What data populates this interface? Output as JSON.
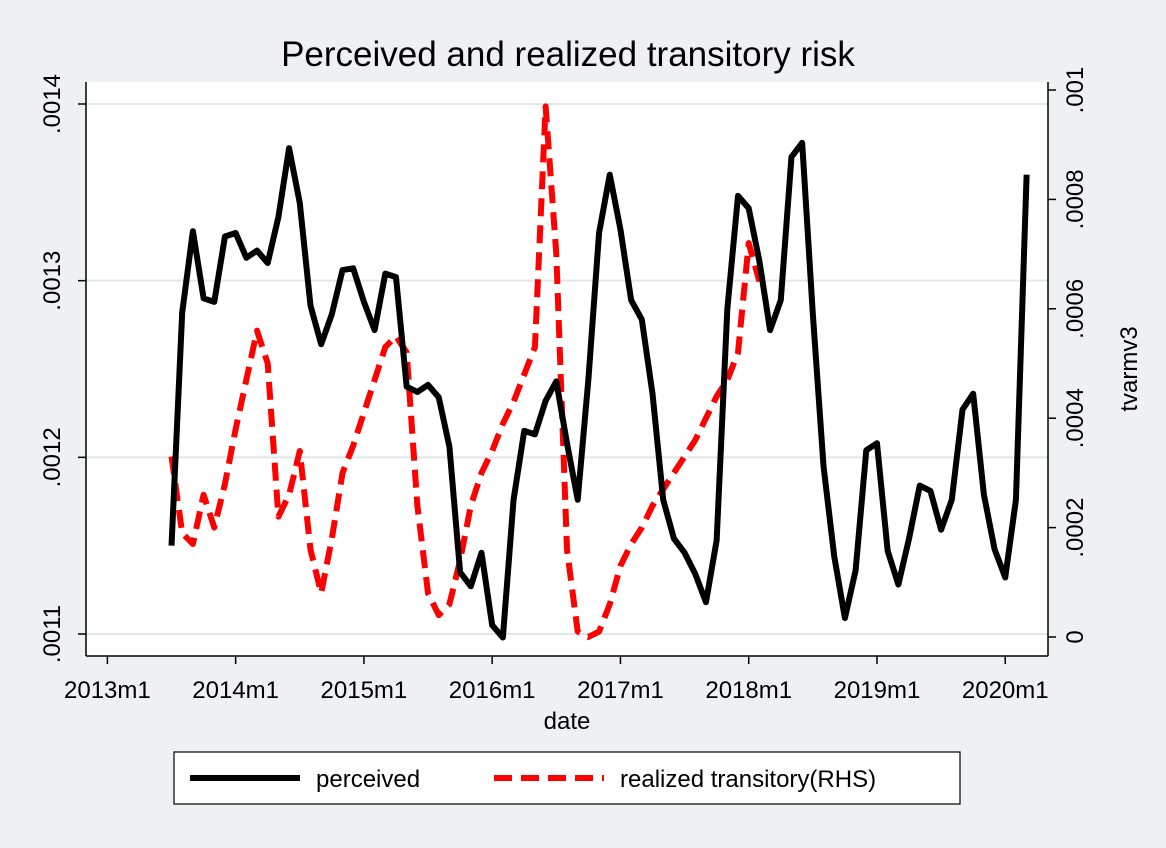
{
  "chart_data": {
    "type": "line",
    "title": "Perceived and realized transitory risk",
    "xlabel": "date",
    "ylabel_left": "",
    "ylabel_right": "tvarmv3",
    "x_start": "2013m7",
    "x_step": "month",
    "x_ticks": [
      "2013m1",
      "2014m1",
      "2015m1",
      "2016m1",
      "2017m1",
      "2018m1",
      "2019m1",
      "2020m1"
    ],
    "y_left_ticks": [
      ".0011",
      ".0012",
      ".0013",
      ".0014"
    ],
    "y_right_ticks": [
      "0",
      ".0002",
      ".0004",
      ".0006",
      ".0008",
      ".001"
    ],
    "y_left_range": [
      0.0011,
      0.0014
    ],
    "y_right_range": [
      0,
      0.001
    ],
    "xlim": [
      "2012m11",
      "2020m5"
    ],
    "grid": true,
    "legend_position": "bottom",
    "series": [
      {
        "name": "perceived",
        "axis": "left",
        "color": "#000000",
        "style": "solid",
        "values": [
          0.00115,
          0.001282,
          0.001328,
          0.00129,
          0.001288,
          0.001325,
          0.001327,
          0.001313,
          0.001317,
          0.00131,
          0.001336,
          0.001375,
          0.001344,
          0.001286,
          0.001264,
          0.001281,
          0.001306,
          0.001307,
          0.001288,
          0.001272,
          0.001304,
          0.001302,
          0.00124,
          0.001237,
          0.001241,
          0.001234,
          0.001206,
          0.001135,
          0.001127,
          0.001146,
          0.001105,
          0.001098,
          0.001176,
          0.001215,
          0.001213,
          0.001232,
          0.001243,
          0.001208,
          0.001176,
          0.001244,
          0.001327,
          0.00136,
          0.001329,
          0.001289,
          0.001278,
          0.001236,
          0.001176,
          0.001154,
          0.001146,
          0.001134,
          0.001118,
          0.001153,
          0.001284,
          0.001348,
          0.001341,
          0.001311,
          0.001272,
          0.001289,
          0.00137,
          0.001378,
          0.001281,
          0.001195,
          0.001144,
          0.001109,
          0.001136,
          0.001204,
          0.001208,
          0.001147,
          0.001128,
          0.001154,
          0.001184,
          0.001181,
          0.001159,
          0.001176,
          0.001227,
          0.001236,
          0.001179,
          0.001148,
          0.001132,
          0.001176,
          0.00136
        ]
      },
      {
        "name": "realized transitory(RHS)",
        "axis": "right",
        "color": "#ff0000",
        "style": "dashed",
        "values": [
          0.00033,
          0.00019,
          0.00017,
          0.00026,
          0.0002,
          0.00028,
          0.00038,
          0.00047,
          0.00056,
          0.0005,
          0.00022,
          0.00026,
          0.00034,
          0.00016,
          8e-05,
          0.00018,
          0.0003,
          0.00035,
          0.00041,
          0.00047,
          0.00053,
          0.00055,
          0.00052,
          0.00024,
          8e-05,
          4e-05,
          6e-05,
          0.00014,
          0.00024,
          0.0003,
          0.00034,
          0.00039,
          0.00043,
          0.00048,
          0.00053,
          0.00097,
          0.0007,
          0.00016,
          1e-05,
          0.0,
          1e-05,
          6e-05,
          0.00013,
          0.00017,
          0.0002,
          0.00024,
          0.00027,
          0.0003,
          0.00033,
          0.00036,
          0.0004,
          0.00044,
          0.00047,
          0.00052,
          0.00072,
          0.00065
        ]
      }
    ]
  }
}
